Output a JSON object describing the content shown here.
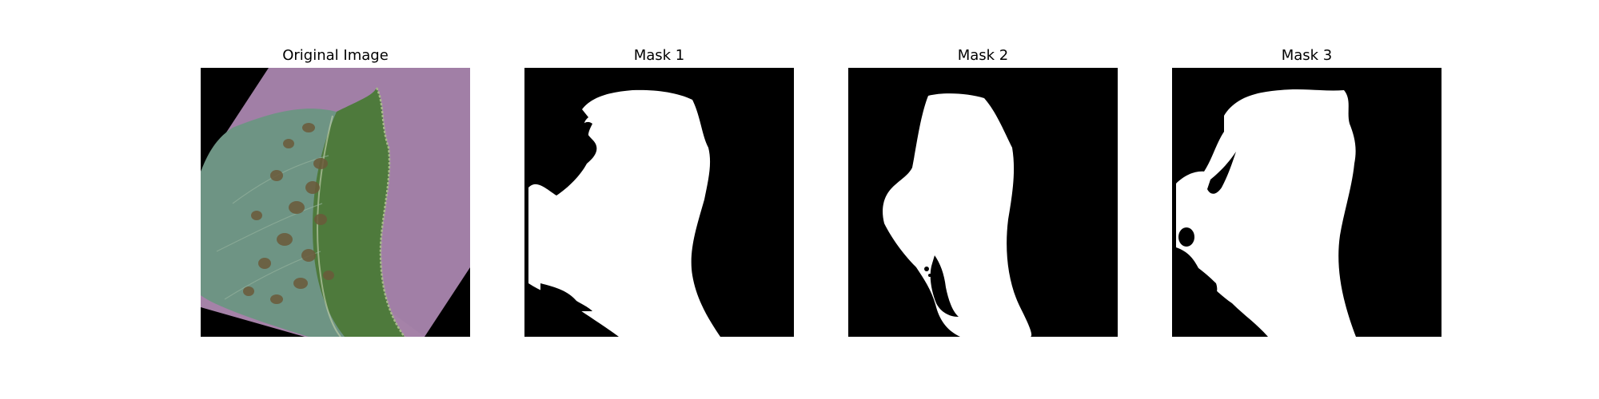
{
  "panels": [
    {
      "title": "Original Image"
    },
    {
      "title": "Mask 1"
    },
    {
      "title": "Mask 2"
    },
    {
      "title": "Mask 3"
    }
  ],
  "colors": {
    "background": "#000000",
    "mask_foreground": "#ffffff",
    "leaf_surface": "#a582a8",
    "leaf_dark_green": "#4e7a3c",
    "leaf_teal": "#6e9484",
    "lesion": "#6b5a3a"
  }
}
